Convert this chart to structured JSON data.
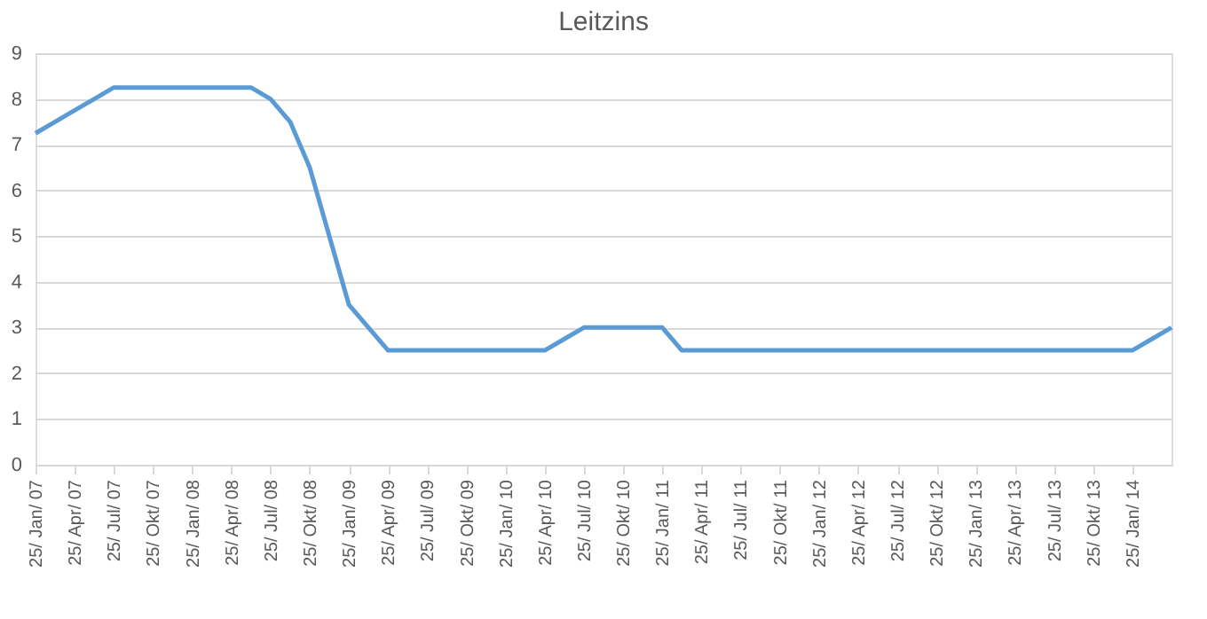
{
  "chart_data": {
    "type": "line",
    "title": "Leitzins",
    "categories": [
      "25/ Jan/ 07",
      null,
      "25/ Apr/ 07",
      null,
      "25/ Jul/ 07",
      null,
      "25/ Okt/ 07",
      null,
      "25/ Jan/ 08",
      null,
      "25/ Apr/ 08",
      null,
      "25/ Jul/ 08",
      null,
      "25/ Okt/ 08",
      null,
      "25/ Jan/ 09",
      null,
      "25/ Apr/ 09",
      null,
      "25/ Jul/ 09",
      null,
      "25/ Okt/ 09",
      null,
      "25/ Jan/ 10",
      null,
      "25/ Apr/ 10",
      null,
      "25/ Jul/ 10",
      null,
      "25/ Okt/ 10",
      null,
      "25/ Jan/ 11",
      null,
      "25/ Apr/ 11",
      null,
      "25/ Jul/ 11",
      null,
      "25/ Okt/ 11",
      null,
      "25/ Jan/ 12",
      null,
      "25/ Apr/ 12",
      null,
      "25/ Jul/ 12",
      null,
      "25/ Okt/ 12",
      null,
      "25/ Jan/ 13",
      null,
      "25/ Apr/ 13",
      null,
      "25/ Jul/ 13",
      null,
      "25/ Okt/ 13",
      null,
      "25/ Jan/ 14",
      null,
      null
    ],
    "series": [
      {
        "color": "#5b9bd5",
        "values": [
          7.25,
          7.5,
          7.75,
          8,
          8.25,
          8.25,
          8.25,
          8.25,
          8.25,
          8.25,
          8.25,
          8.25,
          8,
          7.5,
          6.5,
          5,
          3.5,
          3,
          2.5,
          2.5,
          2.5,
          2.5,
          2.5,
          2.5,
          2.5,
          2.5,
          2.5,
          2.75,
          3,
          3,
          3,
          3,
          3,
          2.5,
          2.5,
          2.5,
          2.5,
          2.5,
          2.5,
          2.5,
          2.5,
          2.5,
          2.5,
          2.5,
          2.5,
          2.5,
          2.5,
          2.5,
          2.5,
          2.5,
          2.5,
          2.5,
          2.5,
          2.5,
          2.5,
          2.5,
          2.5,
          2.75,
          3
        ]
      }
    ],
    "ylim": [
      0,
      9
    ],
    "yticks": [
      0,
      1,
      2,
      3,
      4,
      5,
      6,
      7,
      8,
      9
    ],
    "grid": "y",
    "marker": "none",
    "line_style": "solid"
  }
}
